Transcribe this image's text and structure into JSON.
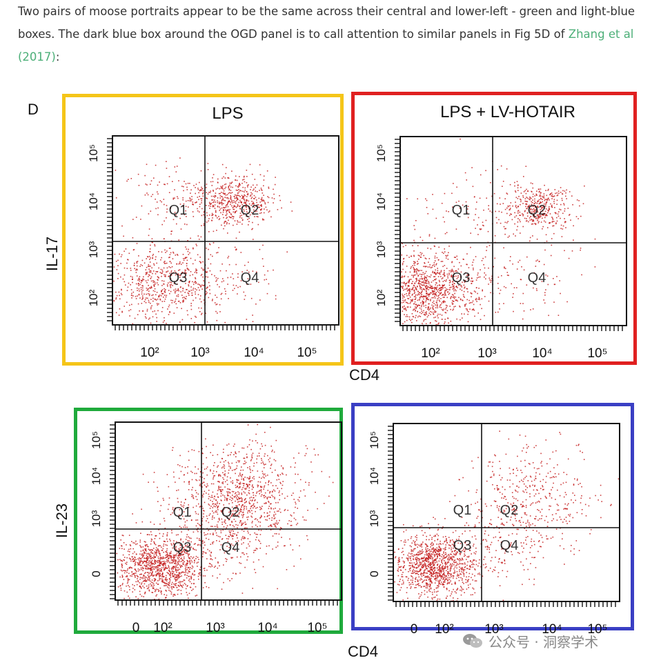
{
  "article": {
    "text_before_link": "Two pairs of moose portraits appear to be the same across their central and lower-left - green and light-blue boxes. The dark blue box around the OGD panel is to call attention to similar panels in Fig 5D of ",
    "link_text": "Zhang et al (2017)",
    "text_after_link": ":"
  },
  "figure": {
    "panel_letter": "D",
    "top_left_title": "LPS",
    "top_right_title": "LPS + LV-HOTAIR",
    "top_ylabel": "IL-17",
    "bottom_ylabel": "IL-23",
    "xlabel_top": "CD4",
    "xlabel_bottom": "CD4",
    "quadrant_labels": [
      "Q1",
      "Q2",
      "Q3",
      "Q4"
    ],
    "x_ticks_top": [
      "10²",
      "10³",
      "10⁴",
      "10⁵"
    ],
    "x_ticks_bottom": [
      "0",
      "10²",
      "10³",
      "10⁴",
      "10⁵"
    ],
    "y_ticks_top": [
      "10²",
      "10³",
      "10⁴",
      "10⁵"
    ],
    "y_ticks_bottom": [
      "0",
      "10³",
      "10⁴",
      "10⁵"
    ],
    "box_colors": {
      "top_left": "#f5c518",
      "top_right": "#e02020",
      "bottom_left": "#1faa3c",
      "bottom_right": "#3a3fc4"
    },
    "dot_color": "#c41e1e"
  },
  "watermark": {
    "text": "公众号 · 洞察学术",
    "icon": "wechat-icon"
  }
}
